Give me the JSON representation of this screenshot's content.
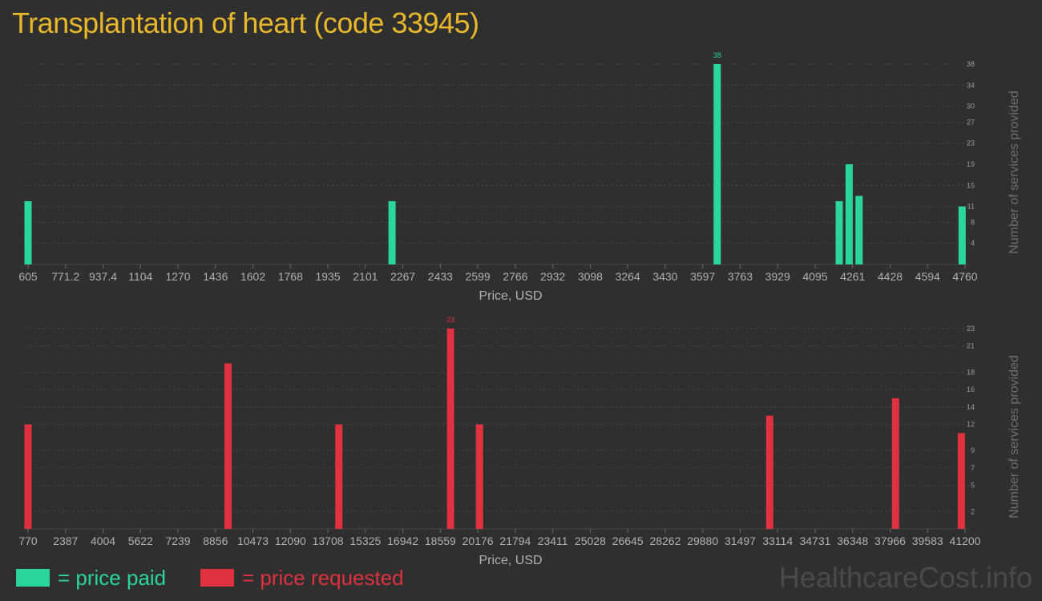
{
  "title": "Transplantation of heart (code 33945)",
  "colors": {
    "paid": "#2ad69a",
    "requested": "#e0313f",
    "title": "#e8b82a"
  },
  "legend": {
    "paid": "= price paid",
    "requested": "= price requested"
  },
  "watermark": "HealthcareCost.info",
  "chart_data": [
    {
      "type": "bar",
      "name": "paid",
      "xlabel": "Price, USD",
      "ylabel": "Number of services provided",
      "x_ticks": [
        "605",
        "771.2",
        "937.4",
        "1104",
        "1270",
        "1436",
        "1602",
        "1768",
        "1935",
        "2101",
        "2267",
        "2433",
        "2599",
        "2766",
        "2932",
        "3098",
        "3264",
        "3430",
        "3597",
        "3763",
        "3929",
        "4095",
        "4261",
        "4428",
        "4594",
        "4760"
      ],
      "xlim": [
        605,
        4760
      ],
      "y_ticks": [
        4,
        8,
        11,
        15,
        19,
        23,
        27,
        30,
        34,
        38
      ],
      "ylim": [
        0,
        38
      ],
      "grid": true,
      "bars": [
        {
          "x": 605,
          "y": 12
        },
        {
          "x": 2219,
          "y": 12
        },
        {
          "x": 3661,
          "y": 38,
          "label": "38"
        },
        {
          "x": 4202,
          "y": 12
        },
        {
          "x": 4246,
          "y": 19
        },
        {
          "x": 4290,
          "y": 13
        },
        {
          "x": 4747,
          "y": 11
        }
      ]
    },
    {
      "type": "bar",
      "name": "requested",
      "xlabel": "Price, USD",
      "ylabel": "Number of services provided",
      "x_ticks": [
        "770",
        "2387",
        "4004",
        "5622",
        "7239",
        "8856",
        "10473",
        "12090",
        "13708",
        "15325",
        "16942",
        "18559",
        "20176",
        "21794",
        "23411",
        "25028",
        "26645",
        "28262",
        "29880",
        "31497",
        "33114",
        "34731",
        "36348",
        "37966",
        "39583",
        "41200"
      ],
      "xlim": [
        770,
        41200
      ],
      "y_ticks": [
        2,
        5,
        7,
        9,
        12,
        14,
        16,
        18,
        21,
        23
      ],
      "ylim": [
        0,
        23
      ],
      "grid": true,
      "bars": [
        {
          "x": 770,
          "y": 12
        },
        {
          "x": 9400,
          "y": 19
        },
        {
          "x": 14180,
          "y": 12
        },
        {
          "x": 19000,
          "y": 23,
          "label": "23"
        },
        {
          "x": 20250,
          "y": 12
        },
        {
          "x": 32770,
          "y": 13
        },
        {
          "x": 38200,
          "y": 15
        },
        {
          "x": 41040,
          "y": 11
        }
      ]
    }
  ]
}
